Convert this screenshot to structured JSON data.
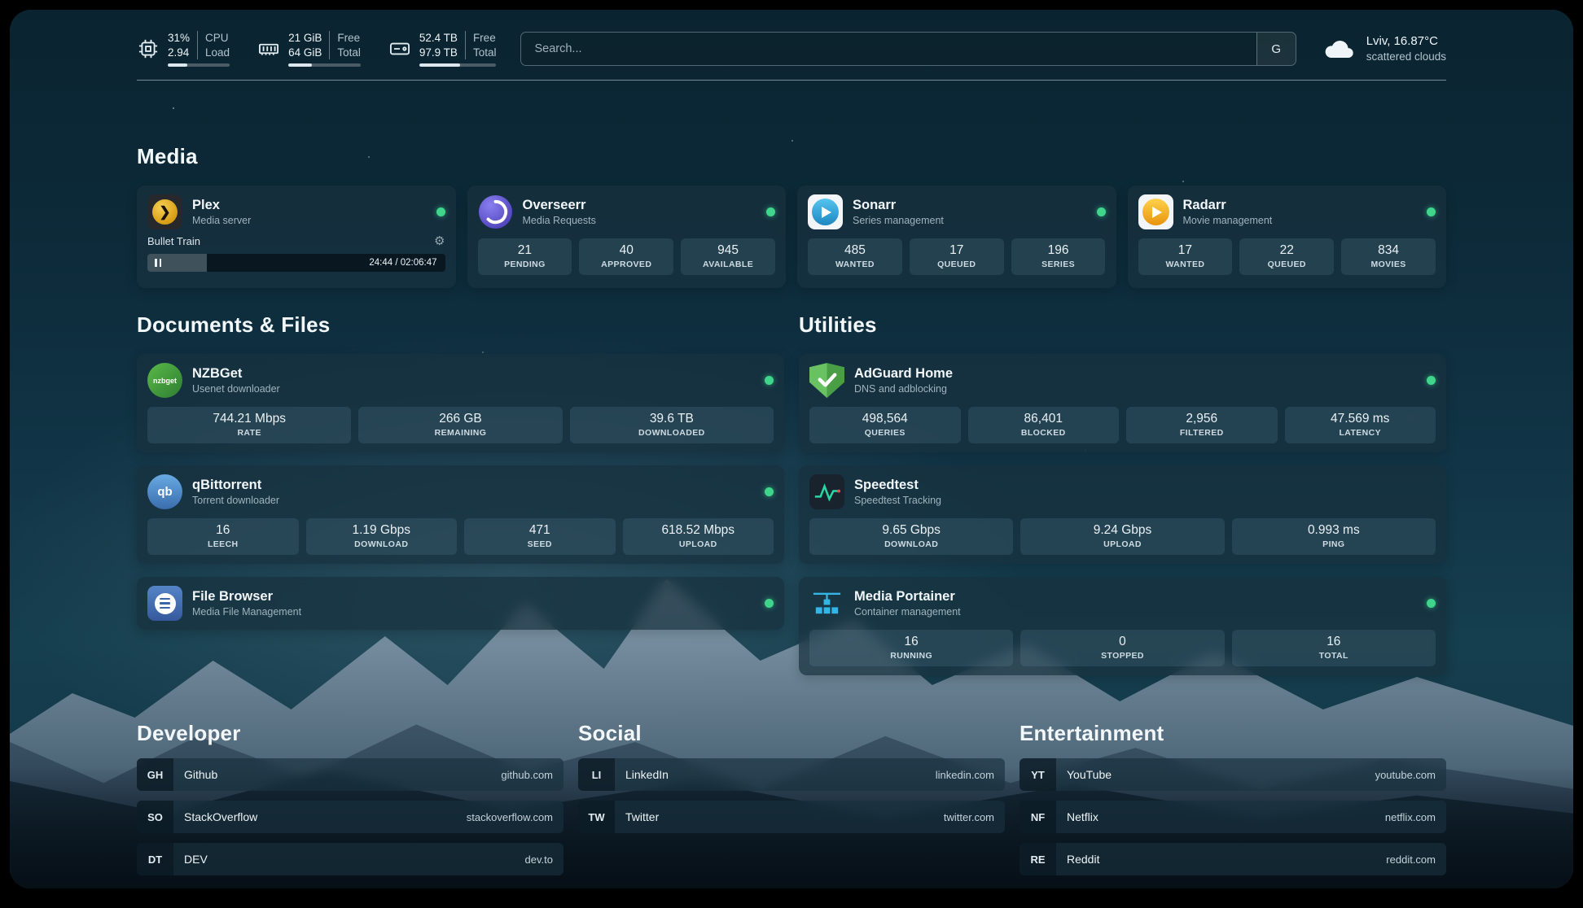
{
  "topbar": {
    "cpu": {
      "value": "31%",
      "load": "2.94",
      "label_top": "CPU",
      "label_bottom": "Load",
      "percent": 31
    },
    "ram": {
      "value_top": "21 GiB",
      "value_bottom": "64 GiB",
      "label_top": "Free",
      "label_bottom": "Total",
      "percent": 33
    },
    "disk": {
      "value_top": "52.4 TB",
      "value_bottom": "97.9 TB",
      "label_top": "Free",
      "label_bottom": "Total",
      "percent": 53
    },
    "search": {
      "placeholder": "Search...",
      "button_label": "G"
    },
    "weather": {
      "location": "Lviv, 16.87°C",
      "condition": "scattered clouds"
    }
  },
  "sections": {
    "media": {
      "title": "Media"
    },
    "documents": {
      "title": "Documents & Files"
    },
    "utilities": {
      "title": "Utilities"
    },
    "developer": {
      "title": "Developer"
    },
    "social": {
      "title": "Social"
    },
    "entertainment": {
      "title": "Entertainment"
    }
  },
  "apps": {
    "plex": {
      "name": "Plex",
      "subtitle": "Media server",
      "now_playing": "Bullet Train",
      "time": "24:44 / 02:06:47",
      "progress_percent": 20
    },
    "overseerr": {
      "name": "Overseerr",
      "subtitle": "Media Requests",
      "stats": [
        {
          "value": "21",
          "label": "PENDING"
        },
        {
          "value": "40",
          "label": "APPROVED"
        },
        {
          "value": "945",
          "label": "AVAILABLE"
        }
      ]
    },
    "sonarr": {
      "name": "Sonarr",
      "subtitle": "Series management",
      "stats": [
        {
          "value": "485",
          "label": "WANTED"
        },
        {
          "value": "17",
          "label": "QUEUED"
        },
        {
          "value": "196",
          "label": "SERIES"
        }
      ]
    },
    "radarr": {
      "name": "Radarr",
      "subtitle": "Movie management",
      "stats": [
        {
          "value": "17",
          "label": "WANTED"
        },
        {
          "value": "22",
          "label": "QUEUED"
        },
        {
          "value": "834",
          "label": "MOVIES"
        }
      ]
    },
    "nzbget": {
      "name": "NZBGet",
      "subtitle": "Usenet downloader",
      "icon_text": "nzbget",
      "stats": [
        {
          "value": "744.21 Mbps",
          "label": "RATE"
        },
        {
          "value": "266 GB",
          "label": "REMAINING"
        },
        {
          "value": "39.6 TB",
          "label": "DOWNLOADED"
        }
      ]
    },
    "qbittorrent": {
      "name": "qBittorrent",
      "subtitle": "Torrent downloader",
      "icon_text": "qb",
      "stats": [
        {
          "value": "16",
          "label": "LEECH"
        },
        {
          "value": "1.19 Gbps",
          "label": "DOWNLOAD"
        },
        {
          "value": "471",
          "label": "SEED"
        },
        {
          "value": "618.52 Mbps",
          "label": "UPLOAD"
        }
      ]
    },
    "filebrowser": {
      "name": "File Browser",
      "subtitle": "Media File Management"
    },
    "adguard": {
      "name": "AdGuard Home",
      "subtitle": "DNS and adblocking",
      "stats": [
        {
          "value": "498,564",
          "label": "QUERIES"
        },
        {
          "value": "86,401",
          "label": "BLOCKED"
        },
        {
          "value": "2,956",
          "label": "FILTERED"
        },
        {
          "value": "47.569 ms",
          "label": "LATENCY"
        }
      ]
    },
    "speedtest": {
      "name": "Speedtest",
      "subtitle": "Speedtest Tracking",
      "stats": [
        {
          "value": "9.65 Gbps",
          "label": "DOWNLOAD"
        },
        {
          "value": "9.24 Gbps",
          "label": "UPLOAD"
        },
        {
          "value": "0.993 ms",
          "label": "PING"
        }
      ]
    },
    "portainer": {
      "name": "Media Portainer",
      "subtitle": "Container management",
      "stats": [
        {
          "value": "16",
          "label": "RUNNING"
        },
        {
          "value": "0",
          "label": "STOPPED"
        },
        {
          "value": "16",
          "label": "TOTAL"
        }
      ]
    }
  },
  "bookmarks": {
    "developer": [
      {
        "abbr": "GH",
        "name": "Github",
        "url": "github.com"
      },
      {
        "abbr": "SO",
        "name": "StackOverflow",
        "url": "stackoverflow.com"
      },
      {
        "abbr": "DT",
        "name": "DEV",
        "url": "dev.to"
      }
    ],
    "social": [
      {
        "abbr": "LI",
        "name": "LinkedIn",
        "url": "linkedin.com"
      },
      {
        "abbr": "TW",
        "name": "Twitter",
        "url": "twitter.com"
      }
    ],
    "entertainment": [
      {
        "abbr": "YT",
        "name": "YouTube",
        "url": "youtube.com"
      },
      {
        "abbr": "NF",
        "name": "Netflix",
        "url": "netflix.com"
      },
      {
        "abbr": "RE",
        "name": "Reddit",
        "url": "reddit.com"
      }
    ]
  },
  "colors": {
    "accent_green": "#3fd68c",
    "card_bg": "#18303e"
  }
}
